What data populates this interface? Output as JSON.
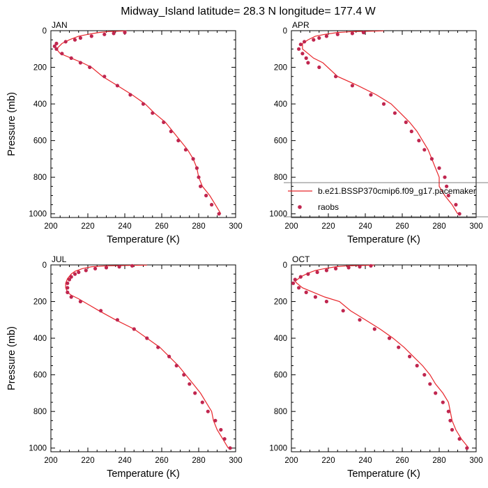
{
  "title": "Midway_Island  latitude= 28.3 N longitude= 177.4 W",
  "colors": {
    "model": "#e8262b",
    "obs": "#c0264f",
    "frame": "#000000"
  },
  "chart_data": [
    {
      "type": "line",
      "panel_label": "JAN",
      "xlabel": "Temperature (K)",
      "ylabel": "Pressure (mb)",
      "xlim": [
        200,
        300
      ],
      "ylim": [
        1020,
        0
      ],
      "x_ticks": [
        200,
        220,
        240,
        260,
        280,
        300
      ],
      "y_ticks": [
        0,
        200,
        400,
        600,
        800,
        1000
      ],
      "series": [
        {
          "kind": "line",
          "values": [
            [
              241,
              1
            ],
            [
              236,
              3
            ],
            [
              231,
              5
            ],
            [
              226,
              10
            ],
            [
              220,
              20
            ],
            [
              215,
              30
            ],
            [
              210,
              50
            ],
            [
              206,
              70
            ],
            [
              203,
              100
            ],
            [
              205,
              125
            ],
            [
              211,
              150
            ],
            [
              217,
              175
            ],
            [
              222,
              200
            ],
            [
              228,
              250
            ],
            [
              236,
              300
            ],
            [
              244,
              350
            ],
            [
              251,
              400
            ],
            [
              256,
              450
            ],
            [
              262,
              500
            ],
            [
              266,
              550
            ],
            [
              270,
              600
            ],
            [
              274,
              650
            ],
            [
              277,
              700
            ],
            [
              279,
              750
            ],
            [
              280,
              800
            ],
            [
              282,
              850
            ],
            [
              286,
              900
            ],
            [
              289,
              950
            ],
            [
              292,
              1000
            ]
          ]
        },
        {
          "kind": "scatter",
          "values": [
            [
              240,
              10
            ],
            [
              234,
              15
            ],
            [
              229,
              20
            ],
            [
              222,
              30
            ],
            [
              216,
              40
            ],
            [
              213,
              50
            ],
            [
              208,
              60
            ],
            [
              203,
              70
            ],
            [
              202,
              85
            ],
            [
              203,
              100
            ],
            [
              206,
              125
            ],
            [
              211,
              150
            ],
            [
              216,
              175
            ],
            [
              221,
              200
            ],
            [
              229,
              250
            ],
            [
              236,
              300
            ],
            [
              243,
              350
            ],
            [
              250,
              400
            ],
            [
              255,
              450
            ],
            [
              261,
              500
            ],
            [
              265,
              550
            ],
            [
              269,
              600
            ],
            [
              273,
              650
            ],
            [
              277,
              700
            ],
            [
              279,
              750
            ],
            [
              280,
              800
            ],
            [
              281,
              850
            ],
            [
              284,
              900
            ],
            [
              287,
              950
            ],
            [
              291,
              1000
            ]
          ]
        }
      ]
    },
    {
      "type": "line",
      "panel_label": "APR",
      "xlabel": "Temperature (K)",
      "ylabel": "",
      "xlim": [
        200,
        300
      ],
      "ylim": [
        1020,
        0
      ],
      "x_ticks": [
        200,
        220,
        240,
        260,
        280,
        300
      ],
      "y_ticks": [
        0,
        200,
        400,
        600,
        800,
        1000
      ],
      "series": [
        {
          "kind": "line",
          "name": "b.e21.BSSP370cmip6.f09_g17.pacemaker",
          "values": [
            [
              250,
              1
            ],
            [
              242,
              3
            ],
            [
              233,
              5
            ],
            [
              225,
              10
            ],
            [
              218,
              20
            ],
            [
              213,
              30
            ],
            [
              209,
              50
            ],
            [
              206,
              70
            ],
            [
              206,
              100
            ],
            [
              209,
              125
            ],
            [
              212,
              150
            ],
            [
              217,
              175
            ],
            [
              225,
              250
            ],
            [
              236,
              300
            ],
            [
              246,
              350
            ],
            [
              254,
              400
            ],
            [
              259,
              450
            ],
            [
              264,
              500
            ],
            [
              268,
              550
            ],
            [
              271,
              600
            ],
            [
              274,
              650
            ],
            [
              276,
              700
            ],
            [
              278,
              750
            ],
            [
              280,
              800
            ],
            [
              280,
              850
            ],
            [
              283,
              900
            ],
            [
              287,
              950
            ],
            [
              290,
              1000
            ]
          ]
        },
        {
          "kind": "scatter",
          "name": "raobs",
          "values": [
            [
              239,
              10
            ],
            [
              233,
              15
            ],
            [
              225,
              20
            ],
            [
              219,
              30
            ],
            [
              215,
              40
            ],
            [
              212,
              50
            ],
            [
              207,
              60
            ],
            [
              205,
              75
            ],
            [
              204,
              100
            ],
            [
              206,
              125
            ],
            [
              208,
              150
            ],
            [
              209,
              175
            ],
            [
              215,
              200
            ],
            [
              224,
              250
            ],
            [
              233,
              300
            ],
            [
              243,
              350
            ],
            [
              250,
              400
            ],
            [
              256,
              450
            ],
            [
              262,
              500
            ],
            [
              265,
              550
            ],
            [
              269,
              600
            ],
            [
              272,
              650
            ],
            [
              276,
              700
            ],
            [
              280,
              750
            ],
            [
              283,
              800
            ],
            [
              284,
              850
            ],
            [
              285,
              900
            ],
            [
              289,
              950
            ],
            [
              291,
              1000
            ]
          ]
        }
      ]
    },
    {
      "type": "line",
      "panel_label": "JUL",
      "xlabel": "Temperature (K)",
      "ylabel": "Pressure (mb)",
      "xlim": [
        200,
        300
      ],
      "ylim": [
        1020,
        0
      ],
      "x_ticks": [
        200,
        220,
        240,
        260,
        280,
        300
      ],
      "y_ticks": [
        0,
        200,
        400,
        600,
        800,
        1000
      ],
      "series": [
        {
          "kind": "line",
          "values": [
            [
              252,
              1
            ],
            [
              240,
              3
            ],
            [
              230,
              5
            ],
            [
              222,
              10
            ],
            [
              217,
              20
            ],
            [
              213,
              35
            ],
            [
              211,
              50
            ],
            [
              209,
              75
            ],
            [
              208,
              100
            ],
            [
              208,
              125
            ],
            [
              209,
              150
            ],
            [
              211,
              165
            ],
            [
              215,
              185
            ],
            [
              226,
              250
            ],
            [
              235,
              300
            ],
            [
              245,
              350
            ],
            [
              252,
              400
            ],
            [
              259,
              450
            ],
            [
              264,
              500
            ],
            [
              269,
              550
            ],
            [
              273,
              600
            ],
            [
              277,
              650
            ],
            [
              281,
              700
            ],
            [
              284,
              750
            ],
            [
              287,
              800
            ],
            [
              288,
              850
            ],
            [
              290,
              900
            ],
            [
              293,
              950
            ],
            [
              296,
              1000
            ]
          ]
        },
        {
          "kind": "scatter",
          "values": [
            [
              244,
              5
            ],
            [
              237,
              10
            ],
            [
              230,
              15
            ],
            [
              224,
              20
            ],
            [
              219,
              30
            ],
            [
              215,
              40
            ],
            [
              213,
              50
            ],
            [
              211,
              65
            ],
            [
              210,
              80
            ],
            [
              209,
              100
            ],
            [
              209,
              125
            ],
            [
              209,
              150
            ],
            [
              211,
              175
            ],
            [
              216,
              200
            ],
            [
              227,
              250
            ],
            [
              236,
              300
            ],
            [
              245,
              350
            ],
            [
              252,
              400
            ],
            [
              258,
              450
            ],
            [
              264,
              500
            ],
            [
              268,
              550
            ],
            [
              272,
              600
            ],
            [
              275,
              650
            ],
            [
              278,
              700
            ],
            [
              282,
              750
            ],
            [
              285,
              800
            ],
            [
              289,
              850
            ],
            [
              292,
              900
            ],
            [
              294,
              950
            ],
            [
              297,
              1000
            ]
          ]
        }
      ]
    },
    {
      "type": "line",
      "panel_label": "OCT",
      "xlabel": "Temperature (K)",
      "ylabel": "",
      "xlim": [
        200,
        300
      ],
      "ylim": [
        1020,
        0
      ],
      "x_ticks": [
        200,
        220,
        240,
        260,
        280,
        300
      ],
      "y_ticks": [
        0,
        200,
        400,
        600,
        800,
        1000
      ],
      "series": [
        {
          "kind": "line",
          "values": [
            [
              245,
              1
            ],
            [
              238,
              3
            ],
            [
              230,
              5
            ],
            [
              224,
              10
            ],
            [
              218,
              20
            ],
            [
              213,
              30
            ],
            [
              209,
              45
            ],
            [
              205,
              65
            ],
            [
              202,
              90
            ],
            [
              203,
              100
            ],
            [
              206,
              125
            ],
            [
              212,
              150
            ],
            [
              218,
              175
            ],
            [
              226,
              200
            ],
            [
              232,
              250
            ],
            [
              240,
              300
            ],
            [
              248,
              350
            ],
            [
              255,
              400
            ],
            [
              261,
              450
            ],
            [
              266,
              500
            ],
            [
              271,
              550
            ],
            [
              275,
              600
            ],
            [
              278,
              650
            ],
            [
              282,
              700
            ],
            [
              285,
              750
            ],
            [
              286,
              800
            ],
            [
              287,
              850
            ],
            [
              289,
              900
            ],
            [
              292,
              950
            ],
            [
              296,
              1000
            ]
          ]
        },
        {
          "kind": "scatter",
          "values": [
            [
              243,
              5
            ],
            [
              237,
              10
            ],
            [
              231,
              15
            ],
            [
              224,
              20
            ],
            [
              219,
              30
            ],
            [
              214,
              40
            ],
            [
              209,
              50
            ],
            [
              205,
              65
            ],
            [
              202,
              80
            ],
            [
              201,
              100
            ],
            [
              204,
              125
            ],
            [
              208,
              150
            ],
            [
              213,
              175
            ],
            [
              219,
              200
            ],
            [
              228,
              250
            ],
            [
              237,
              300
            ],
            [
              245,
              350
            ],
            [
              253,
              400
            ],
            [
              258,
              450
            ],
            [
              264,
              500
            ],
            [
              268,
              550
            ],
            [
              272,
              600
            ],
            [
              275,
              650
            ],
            [
              278,
              700
            ],
            [
              282,
              750
            ],
            [
              285,
              800
            ],
            [
              286,
              850
            ],
            [
              287,
              900
            ],
            [
              291,
              950
            ],
            [
              295,
              1000
            ]
          ]
        }
      ]
    }
  ]
}
